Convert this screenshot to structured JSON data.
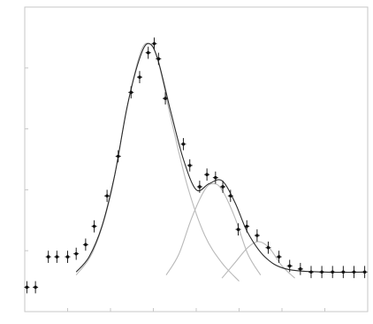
{
  "chart_data": {
    "type": "scatter",
    "title": "",
    "xlabel": "",
    "ylabel": "",
    "xlim": [
      0,
      8
    ],
    "ylim": [
      0,
      1
    ],
    "grid": false,
    "legend": "none",
    "colors": {
      "points": "#111111",
      "fit": "#2a2a2a",
      "components": "#b9b9b9",
      "frame": "#c7c7c7"
    },
    "data_points": [
      {
        "x": 0.05,
        "y": 0.08,
        "err": 0.02
      },
      {
        "x": 0.25,
        "y": 0.08,
        "err": 0.02
      },
      {
        "x": 0.55,
        "y": 0.18,
        "err": 0.02
      },
      {
        "x": 0.75,
        "y": 0.18,
        "err": 0.02
      },
      {
        "x": 1.0,
        "y": 0.18,
        "err": 0.02
      },
      {
        "x": 1.2,
        "y": 0.19,
        "err": 0.02
      },
      {
        "x": 1.42,
        "y": 0.22,
        "err": 0.02
      },
      {
        "x": 1.62,
        "y": 0.28,
        "err": 0.02
      },
      {
        "x": 1.92,
        "y": 0.38,
        "err": 0.02
      },
      {
        "x": 2.18,
        "y": 0.51,
        "err": 0.02
      },
      {
        "x": 2.48,
        "y": 0.72,
        "err": 0.02
      },
      {
        "x": 2.68,
        "y": 0.77,
        "err": 0.02
      },
      {
        "x": 2.88,
        "y": 0.85,
        "err": 0.02
      },
      {
        "x": 3.02,
        "y": 0.88,
        "err": 0.02
      },
      {
        "x": 3.12,
        "y": 0.83,
        "err": 0.02
      },
      {
        "x": 3.28,
        "y": 0.7,
        "err": 0.02
      },
      {
        "x": 3.7,
        "y": 0.55,
        "err": 0.02
      },
      {
        "x": 3.85,
        "y": 0.48,
        "err": 0.02
      },
      {
        "x": 4.08,
        "y": 0.41,
        "err": 0.02
      },
      {
        "x": 4.25,
        "y": 0.45,
        "err": 0.02
      },
      {
        "x": 4.45,
        "y": 0.44,
        "err": 0.02
      },
      {
        "x": 4.62,
        "y": 0.41,
        "err": 0.02
      },
      {
        "x": 4.8,
        "y": 0.38,
        "err": 0.02
      },
      {
        "x": 4.98,
        "y": 0.27,
        "err": 0.02
      },
      {
        "x": 5.18,
        "y": 0.28,
        "err": 0.02
      },
      {
        "x": 5.42,
        "y": 0.25,
        "err": 0.02
      },
      {
        "x": 5.68,
        "y": 0.21,
        "err": 0.02
      },
      {
        "x": 5.93,
        "y": 0.18,
        "err": 0.02
      },
      {
        "x": 6.18,
        "y": 0.15,
        "err": 0.02
      },
      {
        "x": 6.43,
        "y": 0.14,
        "err": 0.02
      },
      {
        "x": 6.68,
        "y": 0.13,
        "err": 0.02
      },
      {
        "x": 6.93,
        "y": 0.13,
        "err": 0.02
      },
      {
        "x": 7.18,
        "y": 0.13,
        "err": 0.02
      },
      {
        "x": 7.43,
        "y": 0.13,
        "err": 0.02
      },
      {
        "x": 7.68,
        "y": 0.13,
        "err": 0.02
      },
      {
        "x": 7.93,
        "y": 0.13,
        "err": 0.02
      }
    ],
    "total_fit": [
      {
        "x": 1.2,
        "y": 0.13
      },
      {
        "x": 1.5,
        "y": 0.18
      },
      {
        "x": 1.8,
        "y": 0.28
      },
      {
        "x": 2.1,
        "y": 0.45
      },
      {
        "x": 2.4,
        "y": 0.68
      },
      {
        "x": 2.7,
        "y": 0.84
      },
      {
        "x": 2.9,
        "y": 0.88
      },
      {
        "x": 3.1,
        "y": 0.83
      },
      {
        "x": 3.4,
        "y": 0.66
      },
      {
        "x": 3.7,
        "y": 0.5
      },
      {
        "x": 4.0,
        "y": 0.4
      },
      {
        "x": 4.3,
        "y": 0.42
      },
      {
        "x": 4.6,
        "y": 0.43
      },
      {
        "x": 4.9,
        "y": 0.36
      },
      {
        "x": 5.2,
        "y": 0.26
      },
      {
        "x": 5.6,
        "y": 0.18
      },
      {
        "x": 6.1,
        "y": 0.14
      },
      {
        "x": 7.0,
        "y": 0.13
      },
      {
        "x": 7.95,
        "y": 0.13
      }
    ],
    "components": [
      {
        "points": [
          {
            "x": 1.2,
            "y": 0.12
          },
          {
            "x": 1.6,
            "y": 0.2
          },
          {
            "x": 2.0,
            "y": 0.38
          },
          {
            "x": 2.4,
            "y": 0.68
          },
          {
            "x": 2.7,
            "y": 0.85
          },
          {
            "x": 2.9,
            "y": 0.88
          },
          {
            "x": 3.1,
            "y": 0.83
          },
          {
            "x": 3.4,
            "y": 0.64
          },
          {
            "x": 3.8,
            "y": 0.41
          },
          {
            "x": 4.2,
            "y": 0.25
          },
          {
            "x": 4.6,
            "y": 0.16
          },
          {
            "x": 5.0,
            "y": 0.1
          }
        ]
      },
      {
        "points": [
          {
            "x": 3.3,
            "y": 0.12
          },
          {
            "x": 3.6,
            "y": 0.19
          },
          {
            "x": 3.9,
            "y": 0.31
          },
          {
            "x": 4.2,
            "y": 0.4
          },
          {
            "x": 4.4,
            "y": 0.42
          },
          {
            "x": 4.6,
            "y": 0.4
          },
          {
            "x": 4.9,
            "y": 0.31
          },
          {
            "x": 5.2,
            "y": 0.19
          },
          {
            "x": 5.5,
            "y": 0.12
          }
        ]
      },
      {
        "points": [
          {
            "x": 4.6,
            "y": 0.11
          },
          {
            "x": 4.9,
            "y": 0.16
          },
          {
            "x": 5.2,
            "y": 0.21
          },
          {
            "x": 5.45,
            "y": 0.23
          },
          {
            "x": 5.7,
            "y": 0.21
          },
          {
            "x": 6.0,
            "y": 0.15
          },
          {
            "x": 6.3,
            "y": 0.11
          }
        ]
      }
    ]
  }
}
